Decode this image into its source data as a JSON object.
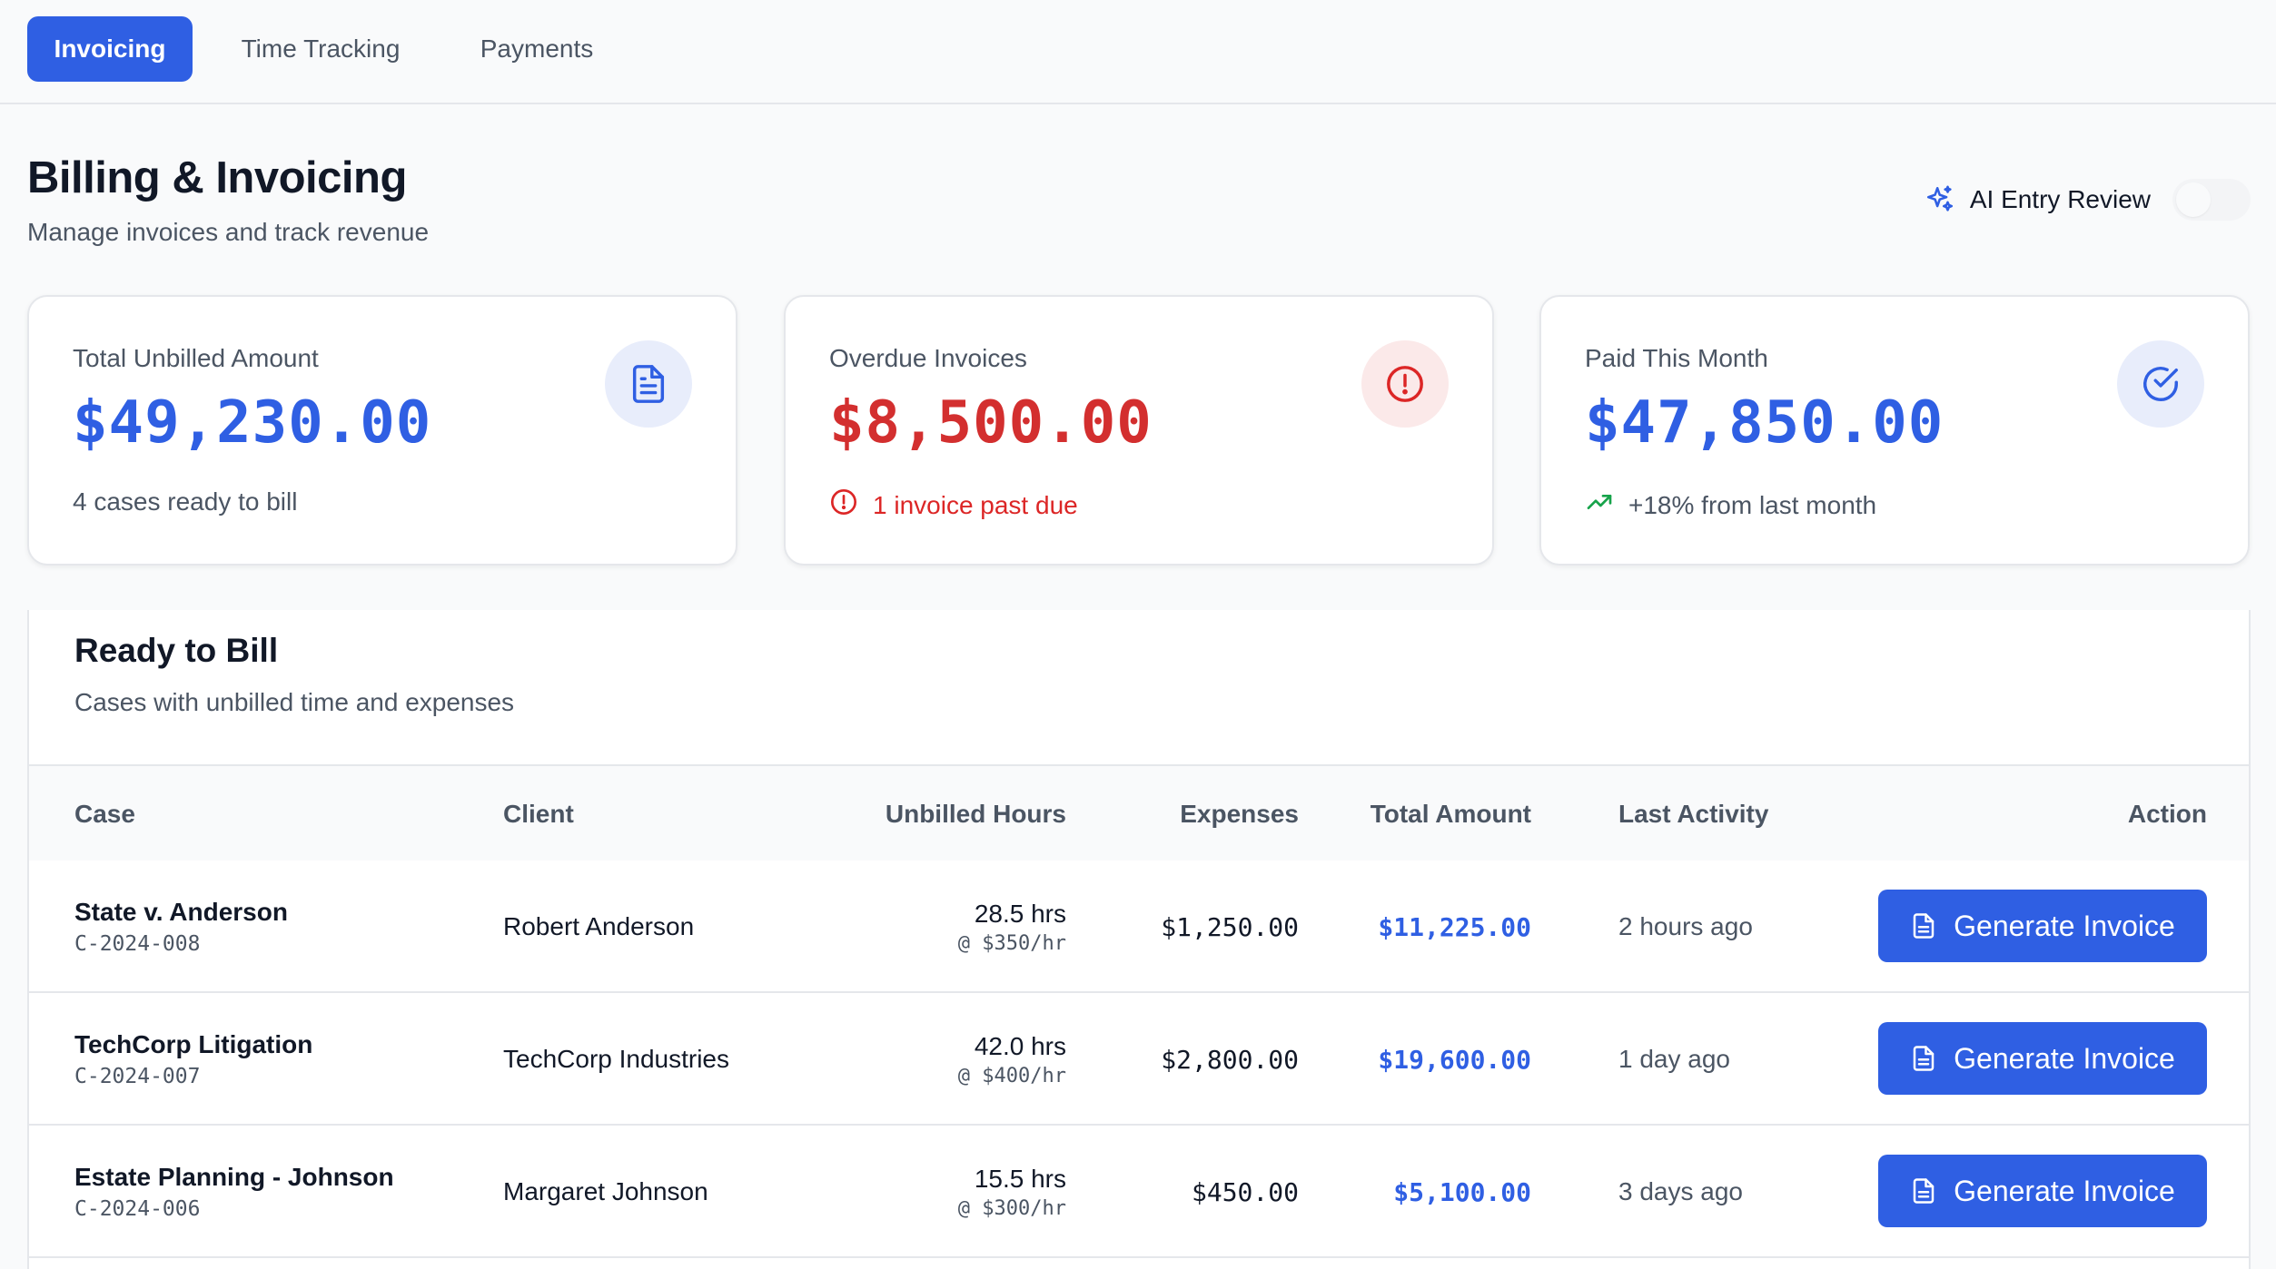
{
  "tabs": [
    {
      "label": "Invoicing",
      "active": true
    },
    {
      "label": "Time Tracking",
      "active": false
    },
    {
      "label": "Payments",
      "active": false
    }
  ],
  "header": {
    "title": "Billing & Invoicing",
    "subtitle": "Manage invoices and track revenue",
    "ai_review_label": "AI Entry Review",
    "ai_review_enabled": false
  },
  "stats": [
    {
      "label": "Total Unbilled Amount",
      "value": "$49,230.00",
      "footer": "4 cases ready to bill",
      "icon": "document-icon",
      "color": "#2f5fe3"
    },
    {
      "label": "Overdue Invoices",
      "value": "$8,500.00",
      "footer": "1 invoice past due",
      "icon": "alert-circle-icon",
      "color": "#dc2626"
    },
    {
      "label": "Paid This Month",
      "value": "$47,850.00",
      "footer": "+18% from last month",
      "icon": "check-circle-icon",
      "color": "#2f5fe3"
    }
  ],
  "ready_to_bill": {
    "title": "Ready to Bill",
    "subtitle": "Cases with unbilled time and expenses",
    "columns": [
      "Case",
      "Client",
      "Unbilled Hours",
      "Expenses",
      "Total Amount",
      "Last Activity",
      "Action"
    ],
    "rows": [
      {
        "case": "State v. Anderson",
        "case_id": "C-2024-008",
        "client": "Robert Anderson",
        "hours": "28.5 hrs",
        "rate": "@ $350/hr",
        "expenses": "$1,250.00",
        "total": "$11,225.00",
        "last_activity": "2 hours ago",
        "action": "Generate Invoice"
      },
      {
        "case": "TechCorp Litigation",
        "case_id": "C-2024-007",
        "client": "TechCorp Industries",
        "hours": "42.0 hrs",
        "rate": "@ $400/hr",
        "expenses": "$2,800.00",
        "total": "$19,600.00",
        "last_activity": "1 day ago",
        "action": "Generate Invoice"
      },
      {
        "case": "Estate Planning - Johnson",
        "case_id": "C-2024-006",
        "client": "Margaret Johnson",
        "hours": "15.5 hrs",
        "rate": "@ $300/hr",
        "expenses": "$450.00",
        "total": "$5,100.00",
        "last_activity": "3 days ago",
        "action": "Generate Invoice"
      }
    ]
  },
  "colors": {
    "accent": "#2f5fe3",
    "danger": "#dc2626",
    "success": "#16a34a"
  }
}
